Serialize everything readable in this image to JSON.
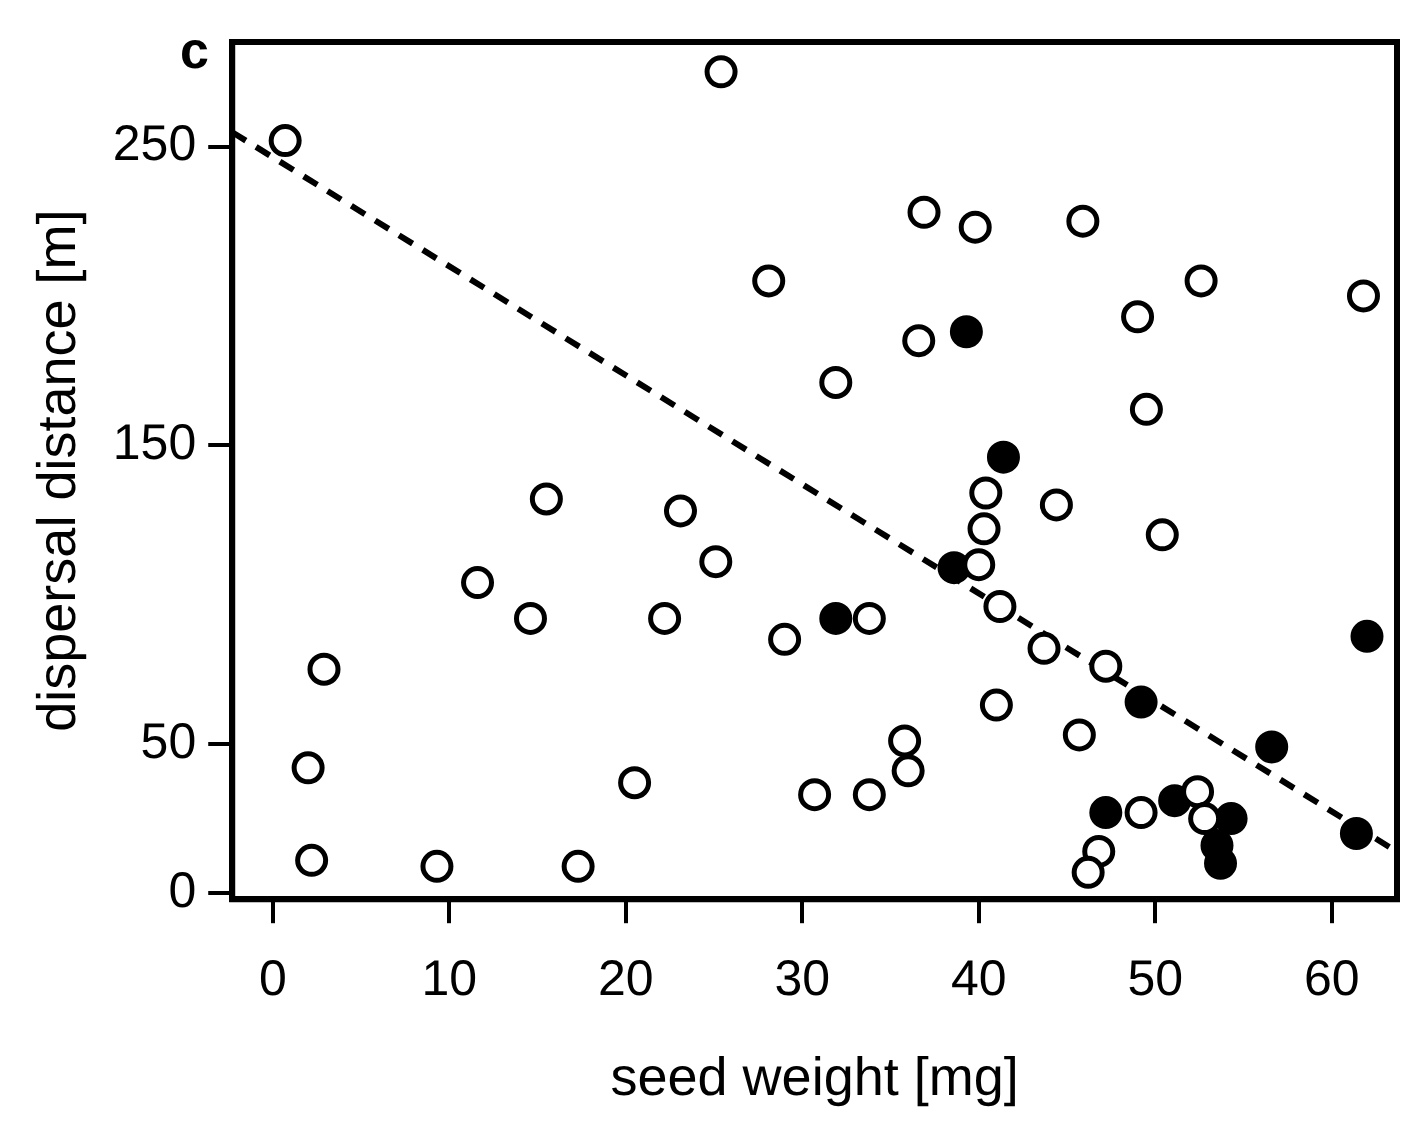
{
  "chart_data": {
    "type": "scatter",
    "xlabel": "seed weight [mg]",
    "ylabel": "dispersal distance [m]",
    "annotations": [
      "c"
    ],
    "xlim": [
      -2.3,
      63.7
    ],
    "ylim": [
      -2,
      285
    ],
    "xticks": [
      0,
      10,
      20,
      30,
      40,
      50,
      60
    ],
    "yticks": [
      0,
      50,
      150,
      250
    ],
    "grid": false,
    "legend": false,
    "marker": "circle",
    "series": [
      {
        "color": "#ffffff",
        "x": [
          0.7,
          25.4,
          28.1,
          36.9,
          39.8,
          45.9,
          52.6,
          61.8,
          49.0,
          36.6,
          31.9,
          49.5,
          40.4,
          44.4,
          15.5,
          23.1,
          25.1,
          11.6,
          14.6,
          22.2,
          29.0,
          2.9,
          2.0,
          20.5,
          2.2,
          9.3,
          17.3,
          40.3,
          50.4,
          40.0,
          41.2,
          33.8,
          43.7,
          47.2,
          41.0,
          45.7,
          35.8,
          36.0,
          33.8,
          30.7,
          49.2,
          52.4,
          52.8,
          46.8,
          46.2
        ],
        "values": [
          252,
          275,
          205,
          228,
          223,
          225,
          205,
          200,
          193,
          185,
          171,
          162,
          134,
          130,
          132,
          128,
          111,
          104,
          92,
          92,
          85,
          75,
          42,
          37,
          11,
          9,
          9,
          122,
          120,
          110,
          96,
          92,
          82,
          76,
          63,
          53,
          51,
          41,
          33,
          33,
          27,
          34,
          25,
          14,
          7
        ]
      },
      {
        "color": "#000000",
        "x": [
          39.3,
          41.4,
          38.6,
          31.9,
          62.0,
          49.2,
          56.6,
          47.2,
          51.1,
          54.3,
          53.7,
          53.5,
          61.4
        ],
        "values": [
          188,
          146,
          109,
          92,
          86,
          64,
          49,
          27,
          31,
          25,
          10,
          16,
          20
        ]
      },
      {
        "type": "line",
        "color": "#000000",
        "line_style": "dashed",
        "marker": "none",
        "x": [
          -2.3,
          63.7
        ],
        "values": [
          254.8,
          13.9
        ]
      }
    ]
  }
}
